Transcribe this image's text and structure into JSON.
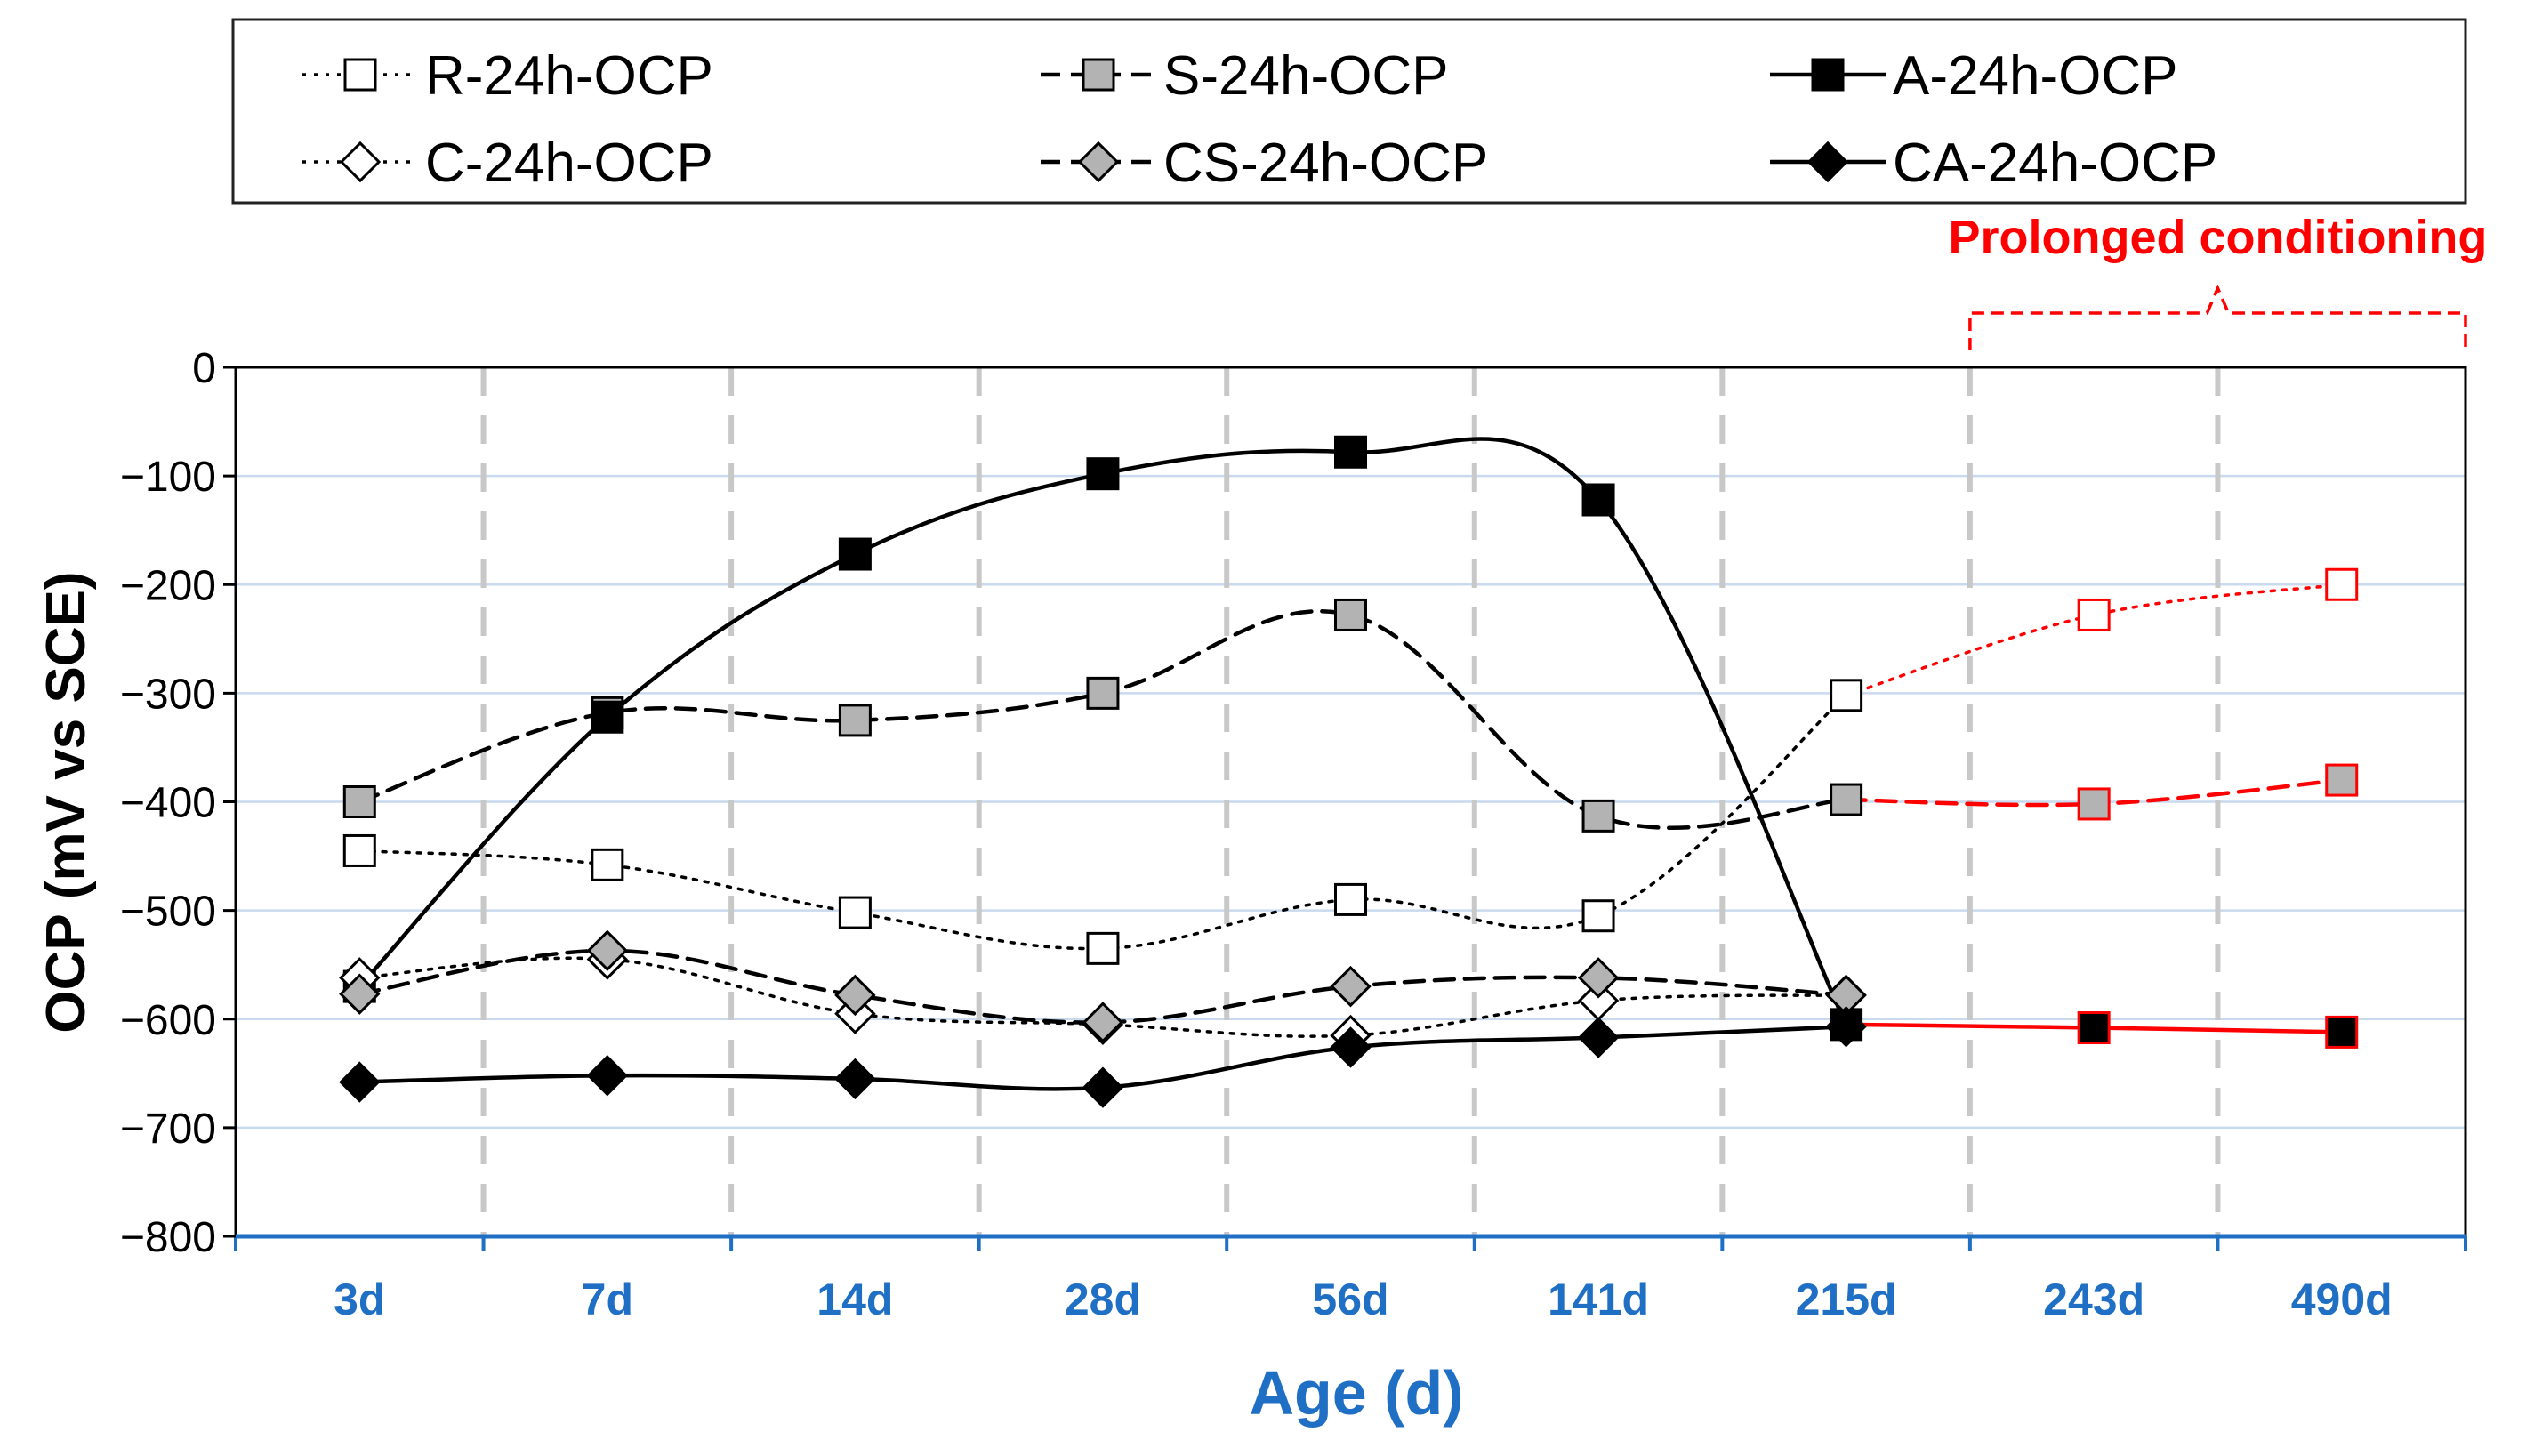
{
  "chart_data": {
    "type": "line",
    "title": "",
    "xlabel": "Age (d)",
    "ylabel": "OCP (mV vs SCE)",
    "categories": [
      "3d",
      "7d",
      "14d",
      "28d",
      "56d",
      "141d",
      "215d",
      "243d",
      "490d"
    ],
    "ylim": [
      -800,
      0
    ],
    "yticks": [
      0,
      -100,
      -200,
      -300,
      -400,
      -500,
      -600,
      -700,
      -800
    ],
    "ytick_labels": [
      "0",
      "−100",
      "−200",
      "−300",
      "−400",
      "−500",
      "−600",
      "−700",
      "−800"
    ],
    "grid": {
      "horizontal": true,
      "vertical_dashed": true
    },
    "legend_position": "top",
    "annotation": {
      "text": "Prolonged conditioning",
      "color": "#ff0000",
      "spans_categories": [
        "243d",
        "490d"
      ]
    },
    "prolonged_color": "#ff0000",
    "axis_color": "#1f6fc4",
    "series": [
      {
        "name": "R-24h-OCP",
        "values": [
          -445,
          -458,
          -502,
          -535,
          -490,
          -505,
          -302,
          -228,
          -200
        ],
        "marker": "square-open",
        "line": "dotted"
      },
      {
        "name": "S-24h-OCP",
        "values": [
          -400,
          -318,
          -325,
          -300,
          -228,
          -413,
          -398,
          -402,
          -380
        ],
        "marker": "square-gray",
        "line": "dashed"
      },
      {
        "name": "A-24h-OCP",
        "values": [
          -570,
          -322,
          -172,
          -98,
          -78,
          -122,
          -605,
          -608,
          -612
        ],
        "marker": "square-black",
        "line": "solid"
      },
      {
        "name": "C-24h-OCP",
        "values": [
          -562,
          -545,
          -595,
          -605,
          -615,
          -583,
          -578,
          null,
          null
        ],
        "marker": "diamond-open",
        "line": "dotted"
      },
      {
        "name": "CS-24h-OCP",
        "values": [
          -577,
          -537,
          -578,
          -603,
          -570,
          -562,
          -578,
          null,
          null
        ],
        "marker": "diamond-gray",
        "line": "dashed"
      },
      {
        "name": "CA-24h-OCP",
        "values": [
          -658,
          -652,
          -655,
          -663,
          -626,
          -617,
          -607,
          null,
          null
        ],
        "marker": "diamond-black",
        "line": "solid"
      }
    ]
  }
}
